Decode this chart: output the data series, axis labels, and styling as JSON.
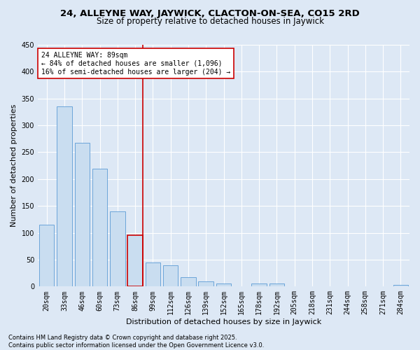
{
  "title1": "24, ALLEYNE WAY, JAYWICK, CLACTON-ON-SEA, CO15 2RD",
  "title2": "Size of property relative to detached houses in Jaywick",
  "xlabel": "Distribution of detached houses by size in Jaywick",
  "ylabel": "Number of detached properties",
  "categories": [
    "20sqm",
    "33sqm",
    "46sqm",
    "60sqm",
    "73sqm",
    "86sqm",
    "99sqm",
    "112sqm",
    "126sqm",
    "139sqm",
    "152sqm",
    "165sqm",
    "178sqm",
    "192sqm",
    "205sqm",
    "218sqm",
    "231sqm",
    "244sqm",
    "258sqm",
    "271sqm",
    "284sqm"
  ],
  "values": [
    115,
    335,
    268,
    220,
    140,
    95,
    45,
    40,
    17,
    10,
    6,
    0,
    5,
    6,
    0,
    0,
    0,
    0,
    0,
    0,
    3
  ],
  "bar_color": "#c9ddf0",
  "bar_edge_color": "#5b9bd5",
  "highlight_bar_index": 5,
  "highlight_bar_edge_color": "#cc0000",
  "vline_color": "#cc0000",
  "annotation_text": "24 ALLEYNE WAY: 89sqm\n← 84% of detached houses are smaller (1,096)\n16% of semi-detached houses are larger (204) →",
  "annotation_box_color": "#ffffff",
  "annotation_box_edge": "#cc0000",
  "ylim": [
    0,
    450
  ],
  "yticks": [
    0,
    50,
    100,
    150,
    200,
    250,
    300,
    350,
    400,
    450
  ],
  "footnote": "Contains HM Land Registry data © Crown copyright and database right 2025.\nContains public sector information licensed under the Open Government Licence v3.0.",
  "bg_color": "#dde8f5",
  "plot_bg_color": "#dde8f5",
  "grid_color": "#ffffff",
  "title_fontsize": 9.5,
  "subtitle_fontsize": 8.5,
  "axis_label_fontsize": 8,
  "tick_fontsize": 7,
  "annotation_fontsize": 7,
  "footnote_fontsize": 6
}
